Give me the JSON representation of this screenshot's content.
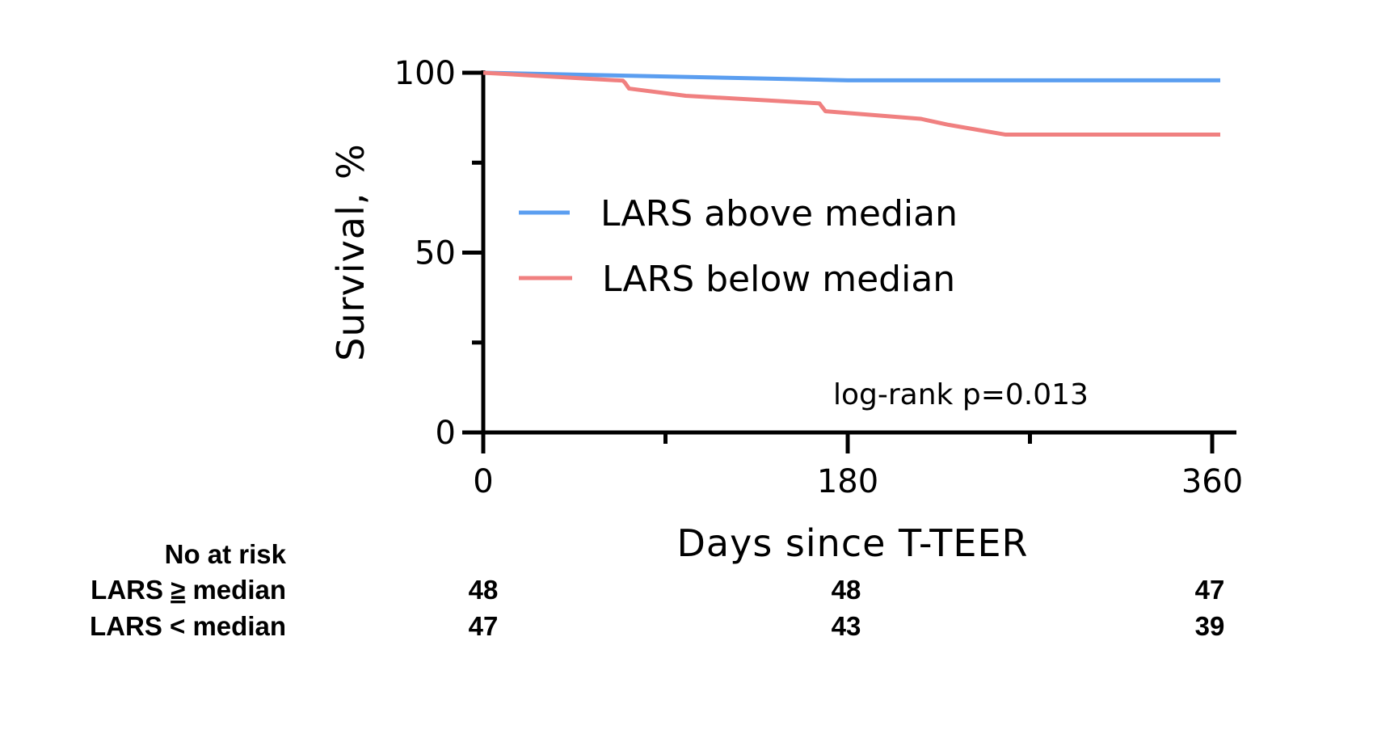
{
  "chart_data": {
    "type": "line",
    "xlabel": "Days since T-TEER",
    "ylabel": "Survival,  %",
    "xlim": [
      0,
      365
    ],
    "ylim": [
      0,
      100
    ],
    "x_ticks": [
      0,
      180,
      360
    ],
    "x_minor_ticks": [
      90,
      270
    ],
    "y_ticks": [
      0,
      50,
      100
    ],
    "y_minor_ticks": [
      25,
      75
    ],
    "legend_position": "center-left",
    "series": [
      {
        "name": "LARS above median",
        "color": "#5b9ef0",
        "x": [
          0,
          180,
          364
        ],
        "y": [
          100,
          97.9,
          97.9
        ]
      },
      {
        "name": "LARS below median",
        "color": "#f08080",
        "x": [
          0,
          69,
          70,
          72,
          100,
          166,
          169,
          216,
          230,
          258,
          364
        ],
        "y": [
          100,
          97.8,
          97.2,
          95.6,
          93.6,
          91.5,
          89.3,
          87.2,
          85.5,
          82.8,
          82.8
        ]
      }
    ],
    "annotation": "log-rank p=0.013"
  },
  "risk_table": {
    "header": "No at risk",
    "rows": [
      {
        "label_prefix": "LARS ",
        "label_op": "≥",
        "label_suffix": " median",
        "values": [
          "48",
          "48",
          "47"
        ]
      },
      {
        "label_prefix": "LARS ",
        "label_op": "<",
        "label_suffix": " median",
        "values": [
          "47",
          "43",
          "39"
        ]
      }
    ]
  }
}
